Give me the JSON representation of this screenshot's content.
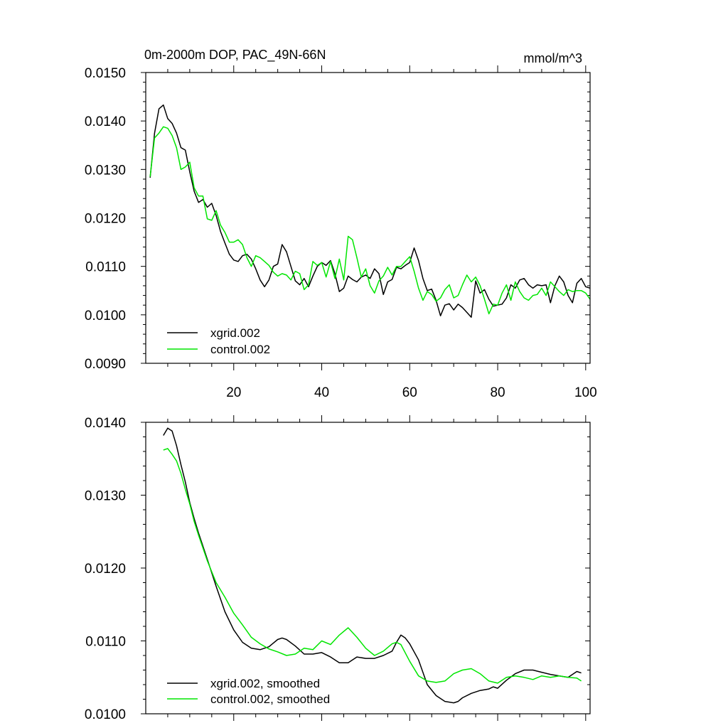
{
  "chart_data": [
    {
      "type": "line",
      "title": "0m-2000m DOP, PAC_49N-66N",
      "units": "mmol/m^3",
      "xlabel": "",
      "ylabel": "",
      "xlim": [
        0,
        101
      ],
      "ylim": [
        0.009,
        0.015
      ],
      "xticks": [
        20,
        40,
        60,
        80,
        100
      ],
      "yticks": [
        0.009,
        0.01,
        0.011,
        0.012,
        0.013,
        0.014,
        0.015
      ],
      "ytick_labels": [
        "0.0090",
        "0.0100",
        "0.0110",
        "0.0120",
        "0.0130",
        "0.0140",
        "0.0150"
      ],
      "xtick_labels": [
        "20",
        "40",
        "60",
        "80",
        "100"
      ],
      "legend_position": "bottom-left",
      "series": [
        {
          "name": "xgrid.002",
          "color": "#000000",
          "x": [
            1,
            2,
            3,
            4,
            5,
            6,
            7,
            8,
            9,
            10,
            11,
            12,
            13,
            14,
            15,
            16,
            17,
            18,
            19,
            20,
            21,
            22,
            23,
            24,
            25,
            26,
            27,
            28,
            29,
            30,
            31,
            32,
            33,
            34,
            35,
            36,
            37,
            38,
            39,
            40,
            41,
            42,
            43,
            44,
            45,
            46,
            47,
            48,
            49,
            50,
            51,
            52,
            53,
            54,
            55,
            56,
            57,
            58,
            59,
            60,
            61,
            62,
            63,
            64,
            65,
            66,
            67,
            68,
            69,
            70,
            71,
            72,
            73,
            74,
            75,
            76,
            77,
            78,
            79,
            80,
            81,
            82,
            83,
            84,
            85,
            86,
            87,
            88,
            89,
            90,
            91,
            92,
            93,
            94,
            95,
            96,
            97,
            98,
            99,
            100,
            101
          ],
          "values": [
            0.01283,
            0.01375,
            0.01425,
            0.01433,
            0.01405,
            0.01395,
            0.01375,
            0.01345,
            0.0134,
            0.01295,
            0.01255,
            0.01232,
            0.01238,
            0.01222,
            0.0123,
            0.01205,
            0.01172,
            0.01148,
            0.01125,
            0.01113,
            0.0111,
            0.01122,
            0.01125,
            0.01115,
            0.01095,
            0.01072,
            0.01058,
            0.01072,
            0.011,
            0.01105,
            0.01145,
            0.0113,
            0.011,
            0.0107,
            0.01062,
            0.01075,
            0.01058,
            0.0108,
            0.011,
            0.01108,
            0.01102,
            0.01112,
            0.01085,
            0.01048,
            0.01055,
            0.0108,
            0.01073,
            0.01068,
            0.01078,
            0.01082,
            0.01075,
            0.01095,
            0.01085,
            0.01042,
            0.01068,
            0.01073,
            0.01098,
            0.01095,
            0.01102,
            0.01108,
            0.01138,
            0.01112,
            0.01075,
            0.0105,
            0.01053,
            0.0103,
            0.00998,
            0.0102,
            0.01023,
            0.0101,
            0.01022,
            0.01015,
            0.01005,
            0.00995,
            0.0107,
            0.01045,
            0.01052,
            0.01032,
            0.01018,
            0.0102,
            0.01022,
            0.01035,
            0.01062,
            0.01055,
            0.01072,
            0.01075,
            0.01062,
            0.01055,
            0.01062,
            0.0106,
            0.01062,
            0.01025,
            0.0106,
            0.0108,
            0.01068,
            0.0104,
            0.01025,
            0.01065,
            0.01075,
            0.01058,
            0.01055
          ]
        },
        {
          "name": "control.002",
          "color": "#00e600",
          "x": [
            1,
            2,
            3,
            4,
            5,
            6,
            7,
            8,
            9,
            10,
            11,
            12,
            13,
            14,
            15,
            16,
            17,
            18,
            19,
            20,
            21,
            22,
            23,
            24,
            25,
            26,
            27,
            28,
            29,
            30,
            31,
            32,
            33,
            34,
            35,
            36,
            37,
            38,
            39,
            40,
            41,
            42,
            43,
            44,
            45,
            46,
            47,
            48,
            49,
            50,
            51,
            52,
            53,
            54,
            55,
            56,
            57,
            58,
            59,
            60,
            61,
            62,
            63,
            64,
            65,
            66,
            67,
            68,
            69,
            70,
            71,
            72,
            73,
            74,
            75,
            76,
            77,
            78,
            79,
            80,
            81,
            82,
            83,
            84,
            85,
            86,
            87,
            88,
            89,
            90,
            91,
            92,
            93,
            94,
            95,
            96,
            97,
            98,
            99,
            100,
            101
          ],
          "values": [
            0.01285,
            0.01365,
            0.01375,
            0.01388,
            0.01385,
            0.0137,
            0.01345,
            0.013,
            0.01305,
            0.01315,
            0.01262,
            0.01245,
            0.01245,
            0.01198,
            0.01195,
            0.01215,
            0.01185,
            0.0117,
            0.0115,
            0.0115,
            0.01155,
            0.01145,
            0.01118,
            0.011,
            0.01122,
            0.01118,
            0.0111,
            0.01102,
            0.01088,
            0.0108,
            0.01085,
            0.01082,
            0.01072,
            0.0109,
            0.01085,
            0.01052,
            0.01062,
            0.0111,
            0.01102,
            0.01108,
            0.01078,
            0.0111,
            0.01075,
            0.01115,
            0.01072,
            0.01162,
            0.01155,
            0.01118,
            0.01078,
            0.01095,
            0.0106,
            0.01045,
            0.0107,
            0.0108,
            0.01098,
            0.01082,
            0.011,
            0.011,
            0.0111,
            0.0112,
            0.0109,
            0.01055,
            0.0103,
            0.01048,
            0.01042,
            0.01028,
            0.01035,
            0.01052,
            0.01062,
            0.01035,
            0.0104,
            0.01062,
            0.01082,
            0.01068,
            0.01078,
            0.0106,
            0.01032,
            0.01002,
            0.01022,
            0.0102,
            0.01045,
            0.01062,
            0.0103,
            0.01068,
            0.01048,
            0.01035,
            0.0103,
            0.0104,
            0.01042,
            0.01055,
            0.0104,
            0.01068,
            0.01058,
            0.01048,
            0.0104,
            0.01052,
            0.01048,
            0.0105,
            0.0105,
            0.01045,
            0.01032
          ]
        }
      ]
    },
    {
      "type": "line",
      "title": "",
      "xlabel": "",
      "ylabel": "",
      "xlim": [
        0,
        101
      ],
      "ylim": [
        0.01,
        0.014
      ],
      "xticks": [
        20,
        40,
        60,
        80,
        100
      ],
      "yticks": [
        0.01,
        0.011,
        0.012,
        0.013,
        0.014
      ],
      "ytick_labels": [
        "0.0100",
        "0.0110",
        "0.0120",
        "0.0130",
        "0.0140"
      ],
      "legend_position": "bottom-left",
      "series": [
        {
          "name": "xgrid.002, smoothed",
          "color": "#000000",
          "x": [
            4,
            5,
            6,
            7,
            8,
            9,
            10,
            11,
            12,
            14,
            16,
            18,
            20,
            22,
            24,
            26,
            28,
            30,
            31,
            32,
            34,
            36,
            38,
            40,
            42,
            44,
            46,
            48,
            50,
            52,
            54,
            56,
            57,
            58,
            59,
            60,
            62,
            64,
            66,
            68,
            70,
            71,
            72,
            74,
            76,
            78,
            79,
            80,
            82,
            84,
            86,
            88,
            90,
            92,
            94,
            96,
            98,
            99
          ],
          "values": [
            0.01382,
            0.01392,
            0.01388,
            0.01368,
            0.01342,
            0.01318,
            0.0129,
            0.01268,
            0.01248,
            0.01212,
            0.01175,
            0.0114,
            0.01115,
            0.01098,
            0.0109,
            0.01088,
            0.01092,
            0.01102,
            0.01104,
            0.01102,
            0.01093,
            0.01082,
            0.01082,
            0.01084,
            0.01078,
            0.0107,
            0.0107,
            0.01078,
            0.01076,
            0.01076,
            0.0108,
            0.01086,
            0.01098,
            0.01108,
            0.01104,
            0.01096,
            0.01074,
            0.0104,
            0.01025,
            0.01017,
            0.01015,
            0.01017,
            0.01022,
            0.01028,
            0.01032,
            0.01034,
            0.01037,
            0.01035,
            0.01046,
            0.01055,
            0.0106,
            0.0106,
            0.01057,
            0.01054,
            0.01052,
            0.0105,
            0.01058,
            0.01056
          ]
        },
        {
          "name": "control.002, smoothed",
          "color": "#00e600",
          "x": [
            4,
            5,
            6,
            7,
            8,
            9,
            10,
            11,
            12,
            14,
            16,
            18,
            20,
            22,
            24,
            26,
            28,
            30,
            32,
            34,
            36,
            38,
            40,
            42,
            44,
            46,
            48,
            50,
            52,
            54,
            56,
            57,
            58,
            60,
            62,
            64,
            66,
            68,
            70,
            72,
            74,
            76,
            78,
            80,
            82,
            84,
            86,
            88,
            90,
            92,
            94,
            96,
            98,
            99
          ],
          "values": [
            0.01362,
            0.01364,
            0.01356,
            0.01347,
            0.0133,
            0.01308,
            0.01288,
            0.01264,
            0.01245,
            0.0121,
            0.0118,
            0.0116,
            0.01138,
            0.01122,
            0.01105,
            0.01096,
            0.01089,
            0.01085,
            0.0108,
            0.01082,
            0.0109,
            0.01088,
            0.011,
            0.01095,
            0.01108,
            0.01118,
            0.01105,
            0.0109,
            0.0108,
            0.01086,
            0.01096,
            0.01098,
            0.01095,
            0.01072,
            0.01052,
            0.01045,
            0.01043,
            0.01045,
            0.01055,
            0.0106,
            0.01062,
            0.01055,
            0.01045,
            0.01042,
            0.0105,
            0.01052,
            0.0105,
            0.01047,
            0.01052,
            0.0105,
            0.01052,
            0.0105,
            0.01049,
            0.01045
          ]
        }
      ]
    }
  ]
}
